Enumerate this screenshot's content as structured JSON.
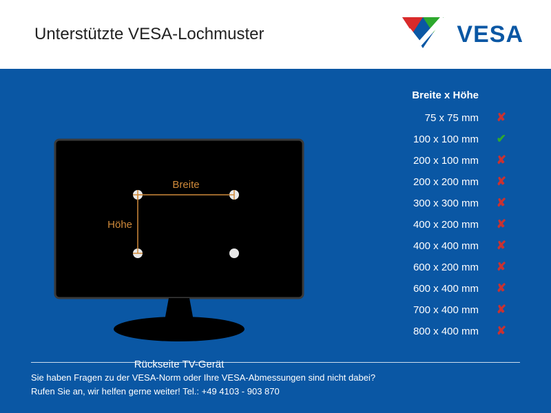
{
  "colors": {
    "main_bg": "#0a57a4",
    "header_bg": "#ffffff",
    "title_text": "#222222",
    "body_text": "#ffffff",
    "dim_orange": "#d08a3a",
    "mount_hole": "#e8e8e8",
    "tv_black": "#000000",
    "tv_border": "#3a3a3a",
    "yes_green": "#2fa82f",
    "no_red": "#c83232",
    "logo_blue": "#0a57a4",
    "logo_green": "#2da82d",
    "logo_red": "#da2a2a"
  },
  "header": {
    "title": "Unterstützte VESA-Lochmuster",
    "logo_text": "VESA"
  },
  "diagram": {
    "caption": "Rückseite TV-Gerät",
    "width_label": "Breite",
    "height_label": "Höhe"
  },
  "table": {
    "header": "Breite x Höhe",
    "rows": [
      {
        "label": "75 x 75 mm",
        "supported": false
      },
      {
        "label": "100 x 100 mm",
        "supported": true
      },
      {
        "label": "200 x 100 mm",
        "supported": false
      },
      {
        "label": "200 x 200 mm",
        "supported": false
      },
      {
        "label": "300 x 300 mm",
        "supported": false
      },
      {
        "label": "400 x 200 mm",
        "supported": false
      },
      {
        "label": "400 x 400 mm",
        "supported": false
      },
      {
        "label": "600 x 200 mm",
        "supported": false
      },
      {
        "label": "600 x 400 mm",
        "supported": false
      },
      {
        "label": "700 x 400 mm",
        "supported": false
      },
      {
        "label": "800 x 400 mm",
        "supported": false
      }
    ]
  },
  "footer": {
    "line1": "Sie haben Fragen zu der VESA-Norm oder Ihre VESA-Abmessungen sind nicht dabei?",
    "line2": "Rufen Sie an, wir helfen gerne weiter! Tel.: +49 4103 - 903 870"
  }
}
